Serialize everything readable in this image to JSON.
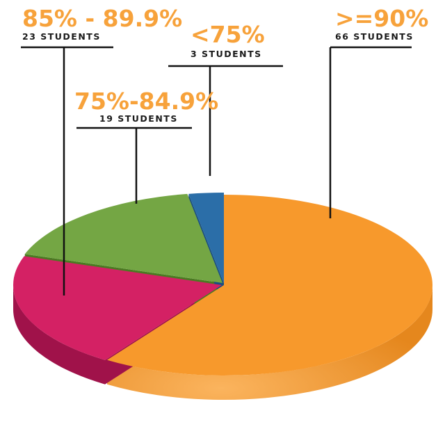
{
  "chart_data": {
    "type": "pie",
    "title": "",
    "legend": "none",
    "slices": [
      {
        "label": ">=90%",
        "count_label": "66 STUDENTS",
        "value": 66,
        "color": "#f7992c",
        "side_color": "#d97f14"
      },
      {
        "label": "85% - 89.9%",
        "count_label": "23 STUDENTS",
        "value": 23,
        "color": "#d42164",
        "side_color": "#a0124a"
      },
      {
        "label": "75%-84.9%",
        "count_label": "19 STUDENTS",
        "value": 19,
        "color": "#74a644",
        "side_color": "#4b7a22"
      },
      {
        "label": "<75%",
        "count_label": "3 STUDENTS",
        "value": 3,
        "color": "#2b6ea8",
        "side_color": "#1a4f80"
      }
    ]
  }
}
